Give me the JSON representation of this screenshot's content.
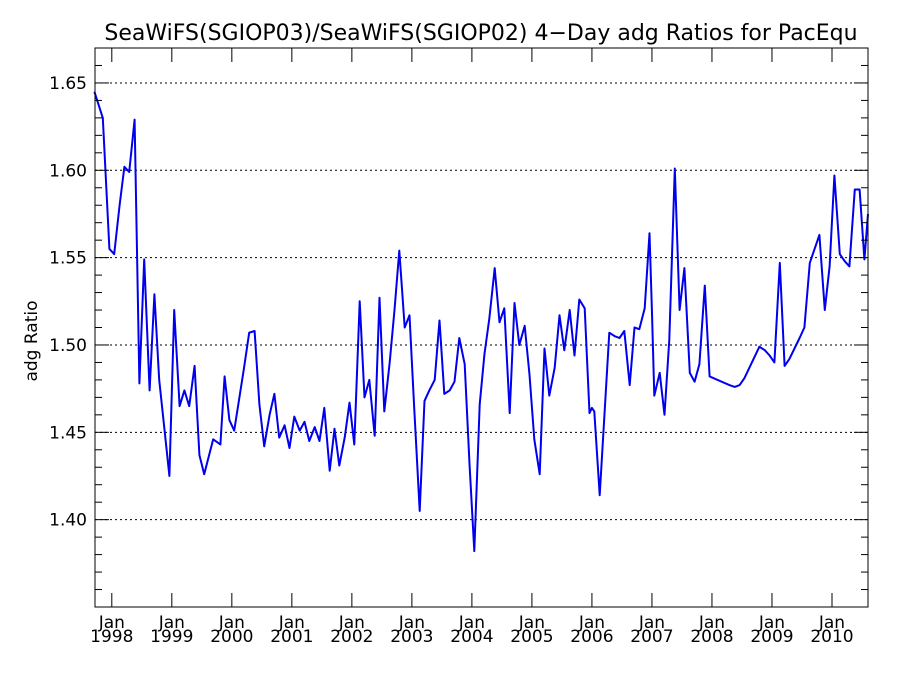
{
  "chart_data": {
    "type": "line",
    "title": "SeaWiFS(SGIOP03)/SeaWiFS(SGIOP02) 4−Day adg Ratios for PacEqu",
    "ylabel": "adg Ratio",
    "xlabel": "",
    "xlim": [
      1997.72,
      2010.6
    ],
    "ylim": [
      1.35,
      1.67
    ],
    "grid": "horizontal dotted at major y ticks",
    "y_ticks": [
      1.4,
      1.45,
      1.5,
      1.55,
      1.6,
      1.65
    ],
    "y_tick_labels": [
      "1.40",
      "1.45",
      "1.50",
      "1.55",
      "1.60",
      "1.65"
    ],
    "x_ticks": [
      {
        "value": 1998,
        "month": "Jan",
        "year": "1998"
      },
      {
        "value": 1999,
        "month": "Jan",
        "year": "1999"
      },
      {
        "value": 2000,
        "month": "Jan",
        "year": "2000"
      },
      {
        "value": 2001,
        "month": "Jan",
        "year": "2001"
      },
      {
        "value": 2002,
        "month": "Jan",
        "year": "2002"
      },
      {
        "value": 2003,
        "month": "Jan",
        "year": "2003"
      },
      {
        "value": 2004,
        "month": "Jan",
        "year": "2004"
      },
      {
        "value": 2005,
        "month": "Jan",
        "year": "2005"
      },
      {
        "value": 2006,
        "month": "Jan",
        "year": "2006"
      },
      {
        "value": 2007,
        "month": "Jan",
        "year": "2007"
      },
      {
        "value": 2008,
        "month": "Jan",
        "year": "2008"
      },
      {
        "value": 2009,
        "month": "Jan",
        "year": "2009"
      },
      {
        "value": 2010,
        "month": "Jan",
        "year": "2010"
      }
    ],
    "line_color": "#0000ee",
    "series": [
      {
        "x": [
          1997.71,
          1997.85,
          1997.96,
          1998.04,
          1998.13,
          1998.21,
          1998.29,
          1998.38,
          1998.46,
          1998.54,
          1998.63,
          1998.71,
          1998.79,
          1998.88,
          1998.96,
          1999.04,
          1999.13,
          1999.21,
          1999.29,
          1999.38,
          1999.46,
          1999.54,
          1999.69,
          1999.81,
          1999.88,
          1999.96,
          2000.04,
          2000.2,
          2000.29,
          2000.38,
          2000.46,
          2000.54,
          2000.63,
          2000.71,
          2000.79,
          2000.88,
          2000.96,
          2001.04,
          2001.13,
          2001.21,
          2001.29,
          2001.38,
          2001.46,
          2001.54,
          2001.63,
          2001.71,
          2001.79,
          2001.88,
          2001.96,
          2002.04,
          2002.13,
          2002.21,
          2002.29,
          2002.38,
          2002.46,
          2002.54,
          2002.63,
          2002.71,
          2002.79,
          2002.88,
          2002.96,
          2003.04,
          2003.13,
          2003.21,
          2003.29,
          2003.38,
          2003.46,
          2003.54,
          2003.63,
          2003.71,
          2003.79,
          2003.88,
          2003.96,
          2004.04,
          2004.13,
          2004.21,
          2004.29,
          2004.38,
          2004.46,
          2004.54,
          2004.63,
          2004.71,
          2004.79,
          2004.88,
          2004.96,
          2005.04,
          2005.13,
          2005.21,
          2005.29,
          2005.38,
          2005.46,
          2005.54,
          2005.63,
          2005.71,
          2005.79,
          2005.88,
          2005.96,
          2006.0,
          2006.04,
          2006.13,
          2006.29,
          2006.38,
          2006.46,
          2006.54,
          2006.63,
          2006.71,
          2006.79,
          2006.88,
          2006.96,
          2007.0,
          2007.04,
          2007.13,
          2007.21,
          2007.29,
          2007.38,
          2007.46,
          2007.54,
          2007.63,
          2007.71,
          2007.79,
          2007.88,
          2007.96,
          2008.29,
          2008.38,
          2008.46,
          2008.54,
          2008.79,
          2008.88,
          2008.96,
          2009.04,
          2009.13,
          2009.21,
          2009.29,
          2009.46,
          2009.54,
          2009.63,
          2009.79,
          2009.88,
          2009.96,
          2010.04,
          2010.13,
          2010.21,
          2010.29,
          2010.38,
          2010.46,
          2010.54,
          2010.6
        ],
        "y": [
          1.645,
          1.63,
          1.555,
          1.552,
          1.58,
          1.602,
          1.599,
          1.629,
          1.478,
          1.549,
          1.474,
          1.529,
          1.48,
          1.451,
          1.425,
          1.52,
          1.465,
          1.474,
          1.465,
          1.488,
          1.437,
          1.426,
          1.446,
          1.443,
          1.482,
          1.457,
          1.451,
          1.486,
          1.507,
          1.508,
          1.466,
          1.442,
          1.46,
          1.472,
          1.447,
          1.454,
          1.441,
          1.459,
          1.451,
          1.456,
          1.445,
          1.453,
          1.445,
          1.464,
          1.428,
          1.452,
          1.431,
          1.447,
          1.467,
          1.443,
          1.525,
          1.47,
          1.48,
          1.448,
          1.527,
          1.462,
          1.49,
          1.52,
          1.554,
          1.51,
          1.517,
          1.463,
          1.405,
          1.468,
          1.474,
          1.48,
          1.514,
          1.472,
          1.474,
          1.479,
          1.504,
          1.489,
          1.432,
          1.382,
          1.466,
          1.495,
          1.515,
          1.544,
          1.513,
          1.521,
          1.461,
          1.524,
          1.5,
          1.511,
          1.483,
          1.446,
          1.426,
          1.498,
          1.471,
          1.487,
          1.517,
          1.497,
          1.52,
          1.494,
          1.526,
          1.521,
          1.461,
          1.464,
          1.462,
          1.414,
          1.507,
          1.505,
          1.504,
          1.508,
          1.477,
          1.51,
          1.509,
          1.521,
          1.564,
          1.52,
          1.471,
          1.484,
          1.46,
          1.503,
          1.601,
          1.52,
          1.544,
          1.484,
          1.479,
          1.489,
          1.534,
          1.482,
          1.477,
          1.476,
          1.477,
          1.481,
          1.499,
          1.497,
          1.494,
          1.49,
          1.547,
          1.488,
          1.492,
          1.504,
          1.51,
          1.547,
          1.563,
          1.52,
          1.545,
          1.597,
          1.552,
          1.548,
          1.545,
          1.589,
          1.589,
          1.549,
          1.575
        ]
      }
    ]
  }
}
